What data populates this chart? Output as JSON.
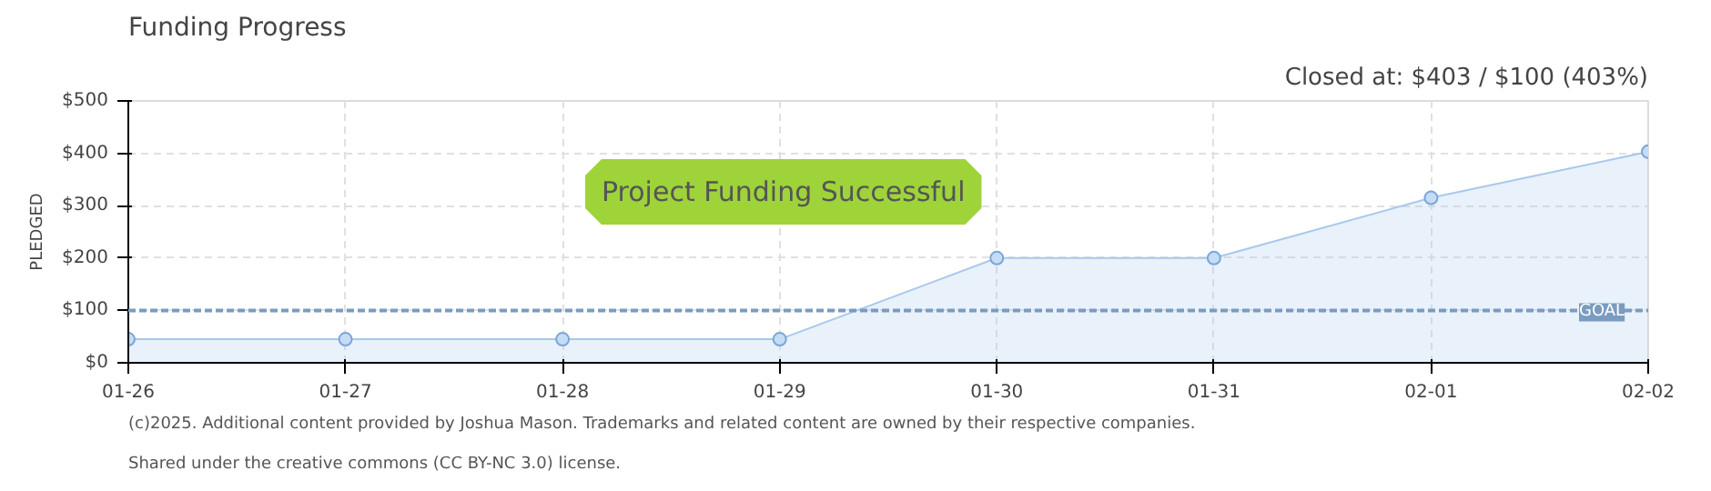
{
  "chart_data": {
    "type": "area",
    "title": "Funding Progress",
    "ylabel": "PLEDGED",
    "categories": [
      "01-26",
      "01-27",
      "01-28",
      "01-29",
      "01-30",
      "01-31",
      "02-01",
      "02-02"
    ],
    "series": [
      {
        "color": "#a8c8ec",
        "values": [
          45,
          45,
          45,
          45,
          200,
          200,
          315,
          403
        ]
      }
    ],
    "ylim": [
      0,
      500
    ],
    "yticks": [
      {
        "value": 0,
        "label": "$0"
      },
      {
        "value": 100,
        "label": "$100"
      },
      {
        "value": 200,
        "label": "$200"
      },
      {
        "value": 300,
        "label": "$300"
      },
      {
        "value": 400,
        "label": "$400"
      },
      {
        "value": 500,
        "label": "$500"
      }
    ],
    "ref_lines": [
      {
        "axis": "y",
        "value": 100,
        "label": "GOAL",
        "color": "#7a9cc0",
        "line_style": "dashed"
      }
    ],
    "marker": "circle",
    "grid": true,
    "annotations": [
      "Closed at: $403 / $100 (403%)",
      "Project Funding Successful",
      "(c)2025. Additional content provided by Joshua Mason. Trademarks and related content are owned by their respective companies.",
      "Shared under the creative commons (CC BY-NC 3.0) license."
    ]
  }
}
